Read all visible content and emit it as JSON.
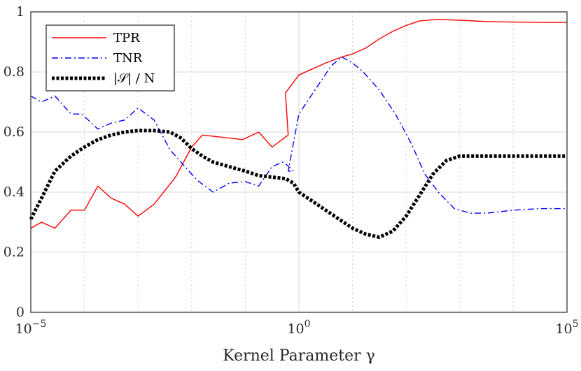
{
  "chart_data": {
    "type": "line",
    "title": "",
    "xlabel": "Kernel Parameter γ",
    "ylabel": "",
    "xscale": "log",
    "xlim": [
      1e-05,
      100000
    ],
    "ylim": [
      0,
      1
    ],
    "grid": true,
    "legend_position": "top-left",
    "x_ticks": [
      {
        "value": 1e-05,
        "base": "10",
        "exp": "−5"
      },
      {
        "value": 1,
        "base": "10",
        "exp": "0"
      },
      {
        "value": 100000,
        "base": "10",
        "exp": "5"
      }
    ],
    "y_ticks": [
      {
        "value": 0,
        "label": "0"
      },
      {
        "value": 0.2,
        "label": "0.2"
      },
      {
        "value": 0.4,
        "label": "0.4"
      },
      {
        "value": 0.6,
        "label": "0.6"
      },
      {
        "value": 0.8,
        "label": "0.8"
      },
      {
        "value": 1,
        "label": "1"
      }
    ],
    "series": [
      {
        "name": "TPR",
        "color": "#ff0000",
        "style": "solid",
        "points": [
          [
            -5.0,
            0.28
          ],
          [
            -4.8,
            0.3
          ],
          [
            -4.55,
            0.28
          ],
          [
            -4.25,
            0.34
          ],
          [
            -4.0,
            0.34
          ],
          [
            -3.75,
            0.42
          ],
          [
            -3.5,
            0.38
          ],
          [
            -3.25,
            0.36
          ],
          [
            -3.0,
            0.32
          ],
          [
            -2.7,
            0.36
          ],
          [
            -2.3,
            0.45
          ],
          [
            -2.0,
            0.55
          ],
          [
            -1.8,
            0.59
          ],
          [
            -1.6,
            0.585
          ],
          [
            -1.3,
            0.58
          ],
          [
            -1.05,
            0.575
          ],
          [
            -0.75,
            0.6
          ],
          [
            -0.5,
            0.55
          ],
          [
            -0.2,
            0.59
          ],
          [
            -0.25,
            0.585
          ],
          [
            -0.25,
            0.585
          ],
          [
            -0.25,
            0.585
          ],
          [
            -0.25,
            0.585
          ],
          [
            -0.25,
            0.585
          ],
          [
            -0.25,
            0.585
          ],
          [
            -0.25,
            0.585
          ],
          [
            -0.25,
            0.585
          ],
          [
            -0.25,
            0.585
          ]
        ],
        "points_clean": [
          [
            -5.0,
            0.28
          ],
          [
            -4.8,
            0.3
          ],
          [
            -4.55,
            0.28
          ],
          [
            -4.25,
            0.34
          ],
          [
            -4.0,
            0.34
          ],
          [
            -3.75,
            0.42
          ],
          [
            -3.5,
            0.38
          ],
          [
            -3.25,
            0.36
          ],
          [
            -3.0,
            0.32
          ],
          [
            -2.7,
            0.36
          ],
          [
            -2.3,
            0.45
          ],
          [
            -2.0,
            0.55
          ],
          [
            -1.8,
            0.59
          ],
          [
            -1.3,
            0.58
          ],
          [
            -1.05,
            0.575
          ],
          [
            -0.75,
            0.6
          ],
          [
            -0.5,
            0.55
          ],
          [
            -0.2,
            0.59
          ],
          [
            -0.25,
            0.73
          ],
          [
            0.0,
            0.79
          ],
          [
            0.25,
            0.81
          ],
          [
            0.5,
            0.83
          ],
          [
            0.8,
            0.85
          ],
          [
            1.0,
            0.86
          ],
          [
            1.25,
            0.88
          ],
          [
            1.5,
            0.91
          ],
          [
            1.75,
            0.935
          ],
          [
            2.0,
            0.955
          ],
          [
            2.25,
            0.97
          ],
          [
            2.6,
            0.975
          ],
          [
            3.0,
            0.972
          ],
          [
            3.5,
            0.968
          ],
          [
            4.0,
            0.966
          ],
          [
            4.5,
            0.965
          ],
          [
            5.0,
            0.965
          ]
        ]
      },
      {
        "name": "TNR",
        "color": "#0000ff",
        "style": "dashdot",
        "points_clean": [
          [
            -5.0,
            0.72
          ],
          [
            -4.8,
            0.7
          ],
          [
            -4.55,
            0.72
          ],
          [
            -4.25,
            0.66
          ],
          [
            -4.05,
            0.66
          ],
          [
            -3.75,
            0.61
          ],
          [
            -3.5,
            0.63
          ],
          [
            -3.25,
            0.64
          ],
          [
            -3.0,
            0.68
          ],
          [
            -2.7,
            0.64
          ],
          [
            -2.4,
            0.54
          ],
          [
            -1.95,
            0.45
          ],
          [
            -1.9,
            0.44
          ],
          [
            -1.6,
            0.4
          ],
          [
            -1.3,
            0.43
          ],
          [
            -1.0,
            0.435
          ],
          [
            -0.75,
            0.42
          ],
          [
            -0.5,
            0.485
          ],
          [
            -0.3,
            0.5
          ],
          [
            -0.25,
            0.495
          ],
          [
            -0.1,
            0.47
          ],
          [
            -0.2,
            0.47
          ],
          [
            0.0,
            0.66
          ],
          [
            0.3,
            0.74
          ],
          [
            0.6,
            0.82
          ],
          [
            0.8,
            0.85
          ],
          [
            1.0,
            0.83
          ],
          [
            1.2,
            0.8
          ],
          [
            1.5,
            0.74
          ],
          [
            1.8,
            0.66
          ],
          [
            2.1,
            0.56
          ],
          [
            2.35,
            0.46
          ],
          [
            2.6,
            0.4
          ],
          [
            2.9,
            0.345
          ],
          [
            3.2,
            0.33
          ],
          [
            3.5,
            0.33
          ],
          [
            4.0,
            0.34
          ],
          [
            4.5,
            0.345
          ],
          [
            5.0,
            0.345
          ]
        ]
      },
      {
        "name": "|𝒮| / N",
        "color": "#000000",
        "style": "dotted",
        "points_clean": [
          [
            -5.0,
            0.31
          ],
          [
            -4.8,
            0.38
          ],
          [
            -4.55,
            0.47
          ],
          [
            -4.25,
            0.52
          ],
          [
            -4.0,
            0.55
          ],
          [
            -3.75,
            0.575
          ],
          [
            -3.5,
            0.59
          ],
          [
            -3.25,
            0.6
          ],
          [
            -3.0,
            0.605
          ],
          [
            -2.7,
            0.605
          ],
          [
            -2.4,
            0.6
          ],
          [
            -2.2,
            0.58
          ],
          [
            -2.0,
            0.545
          ],
          [
            -1.8,
            0.52
          ],
          [
            -1.6,
            0.5
          ],
          [
            -1.3,
            0.485
          ],
          [
            -1.0,
            0.47
          ],
          [
            -0.75,
            0.455
          ],
          [
            -0.5,
            0.45
          ],
          [
            -0.25,
            0.445
          ],
          [
            -0.1,
            0.43
          ],
          [
            0.0,
            0.4
          ],
          [
            0.25,
            0.37
          ],
          [
            0.5,
            0.34
          ],
          [
            0.75,
            0.31
          ],
          [
            1.0,
            0.28
          ],
          [
            1.25,
            0.26
          ],
          [
            1.5,
            0.25
          ],
          [
            1.75,
            0.27
          ],
          [
            2.0,
            0.32
          ],
          [
            2.25,
            0.39
          ],
          [
            2.5,
            0.46
          ],
          [
            2.75,
            0.505
          ],
          [
            3.0,
            0.52
          ],
          [
            3.5,
            0.52
          ],
          [
            4.0,
            0.52
          ],
          [
            4.5,
            0.52
          ],
          [
            5.0,
            0.52
          ]
        ]
      }
    ]
  }
}
